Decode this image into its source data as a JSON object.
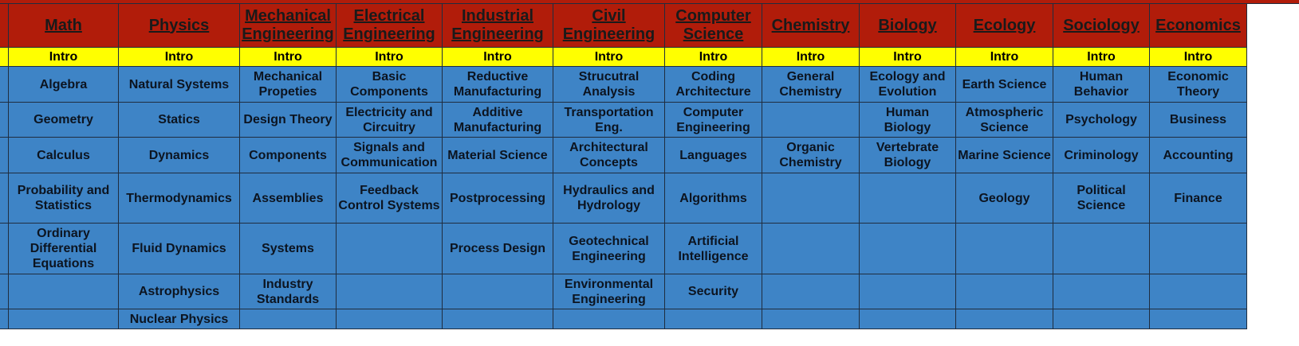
{
  "sheet": {
    "colors": {
      "header_bg": "#b11c0a",
      "intro_bg": "#ffff00",
      "body_bg": "#3e84c6"
    },
    "columns": [
      {
        "title": "Math",
        "intro": "Intro",
        "courses": [
          "Algebra",
          "Geometry",
          "Calculus",
          "Probability and Statistics",
          "Ordinary Differential Equations",
          "",
          ""
        ]
      },
      {
        "title": "Physics",
        "intro": "Intro",
        "courses": [
          "Natural Systems",
          "Statics",
          "Dynamics",
          "Thermodynamics",
          "Fluid Dynamics",
          "Astrophysics",
          "Nuclear Physics"
        ]
      },
      {
        "title": "Mechanical Engineering",
        "intro": "Intro",
        "courses": [
          "Mechanical Propeties",
          "Design Theory",
          "Components",
          "Assemblies",
          "Systems",
          "Industry Standards",
          ""
        ]
      },
      {
        "title": "Electrical Engineering",
        "intro": "Intro",
        "courses": [
          "Basic Components",
          "Electricity and Circuitry",
          "Signals and Communication",
          "Feedback Control Systems",
          "",
          "",
          ""
        ]
      },
      {
        "title": "Industrial Engineering",
        "intro": "Intro",
        "courses": [
          "Reductive Manufacturing",
          "Additive Manufacturing",
          "Material Science",
          "Postprocessing",
          "Process Design",
          "",
          ""
        ]
      },
      {
        "title": "Civil Engineering",
        "intro": "Intro",
        "courses": [
          "Strucutral Analysis",
          "Transportation Eng.",
          "Architectural Concepts",
          "Hydraulics and Hydrology",
          "Geotechnical Engineering",
          "Environmental Engineering",
          ""
        ]
      },
      {
        "title": "Computer Science",
        "intro": "Intro",
        "courses": [
          "Coding Architecture",
          "Computer Engineering",
          "Languages",
          "Algorithms",
          "Artificial Intelligence",
          "Security",
          ""
        ]
      },
      {
        "title": "Chemistry",
        "intro": "Intro",
        "courses": [
          "General Chemistry",
          "",
          "Organic Chemistry",
          "",
          "",
          "",
          ""
        ]
      },
      {
        "title": "Biology",
        "intro": "Intro",
        "courses": [
          "Ecology and Evolution",
          "Human Biology",
          "Vertebrate Biology",
          "",
          "",
          "",
          ""
        ]
      },
      {
        "title": "Ecology",
        "intro": "Intro",
        "courses": [
          "Earth Science",
          "Atmospheric Science",
          "Marine Science",
          "Geology",
          "",
          "",
          ""
        ]
      },
      {
        "title": "Sociology",
        "intro": "Intro",
        "courses": [
          "Human Behavior",
          "Psychology",
          "Criminology",
          "Political Science",
          "",
          "",
          ""
        ]
      },
      {
        "title": "Economics",
        "intro": "Intro",
        "courses": [
          "Economic Theory",
          "Business",
          "Accounting",
          "Finance",
          "",
          "",
          ""
        ]
      }
    ]
  }
}
